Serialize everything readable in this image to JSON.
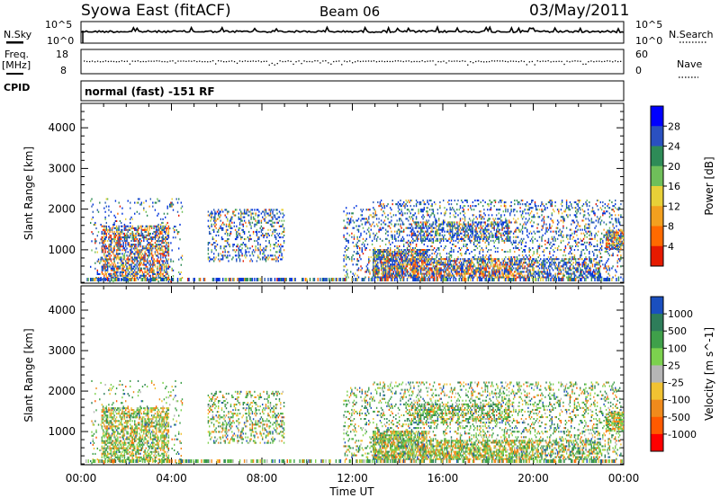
{
  "header": {
    "radar": "Syowa East (fitACF)",
    "beam": "Beam 06",
    "date": "03/May/2011"
  },
  "summary": {
    "nsky_label": "N.Sky",
    "nsearch_label": "N.Search",
    "freq_label_1": "Freq.",
    "freq_label_2": "[MHz]",
    "nave_label": "Nave",
    "cpid_label": "CPID",
    "left_top_tick_1": "10^5",
    "left_bottom_tick_1": "10^0",
    "right_top_tick_1": "10^5",
    "right_bottom_tick_1": "10^0",
    "freq_top_tick": "18",
    "freq_bottom_tick": "8",
    "nave_top_tick": "60",
    "nave_bottom_tick": "0",
    "cpid_text": "normal (fast) -151 RF"
  },
  "chart_data": [
    {
      "type": "heatmap",
      "name": "power",
      "x_range": [
        "00:00",
        "00:00"
      ],
      "x_ticks": [
        "00:00",
        "04:00",
        "08:00",
        "12:00",
        "16:00",
        "20:00",
        "00:00"
      ],
      "xlabel": "Time UT",
      "ylabel": "Slant Range [km]",
      "ylim": [
        180,
        4600
      ],
      "y_ticks": [
        1000,
        2000,
        3000,
        4000
      ],
      "colorbar_label": "Power [dB]",
      "colorbar_ticks": [
        "4",
        "8",
        "12",
        "16",
        "20",
        "24",
        "28"
      ],
      "colorbar_colors": [
        "#0000ff",
        "#2a50c0",
        "#2e8b57",
        "#6fbf5a",
        "#e8d038",
        "#f3a01f",
        "#ff6a00",
        "#e61a00"
      ],
      "echo_regions": [
        {
          "t": [
            1.0,
            3.8
          ],
          "range": [
            300,
            1500
          ],
          "dominant": "strong"
        },
        {
          "t": [
            5.6,
            9.0
          ],
          "range": [
            700,
            2000
          ],
          "dominant": "weak"
        },
        {
          "t": [
            12.0,
            24.0
          ],
          "range": [
            300,
            2200
          ],
          "dominant": "mixed"
        }
      ]
    },
    {
      "type": "heatmap",
      "name": "velocity",
      "x_range": [
        "00:00",
        "00:00"
      ],
      "x_ticks": [
        "00:00",
        "04:00",
        "08:00",
        "12:00",
        "16:00",
        "20:00",
        "00:00"
      ],
      "xlabel": "Time UT",
      "ylabel": "Slant Range [km]",
      "ylim": [
        180,
        4600
      ],
      "y_ticks": [
        1000,
        2000,
        3000,
        4000
      ],
      "colorbar_label": "Velocity [m s^-1]",
      "colorbar_ticks": [
        "1000",
        "500",
        "100",
        "25",
        "-25",
        "-100",
        "-500",
        "-1000"
      ],
      "colorbar_colors": [
        "#1a4fbf",
        "#2e7d5a",
        "#3fa04a",
        "#7cd14e",
        "#b5b5b5",
        "#f1c232",
        "#f08a1c",
        "#ff5a00",
        "#ff0000"
      ],
      "echo_regions": [
        {
          "t": [
            1.0,
            3.8
          ],
          "range": [
            300,
            1500
          ],
          "dominant": "green-orange"
        },
        {
          "t": [
            5.6,
            9.0
          ],
          "range": [
            700,
            2000
          ],
          "dominant": "orange-green"
        },
        {
          "t": [
            12.0,
            24.0
          ],
          "range": [
            300,
            2200
          ],
          "dominant": "green"
        }
      ]
    }
  ]
}
